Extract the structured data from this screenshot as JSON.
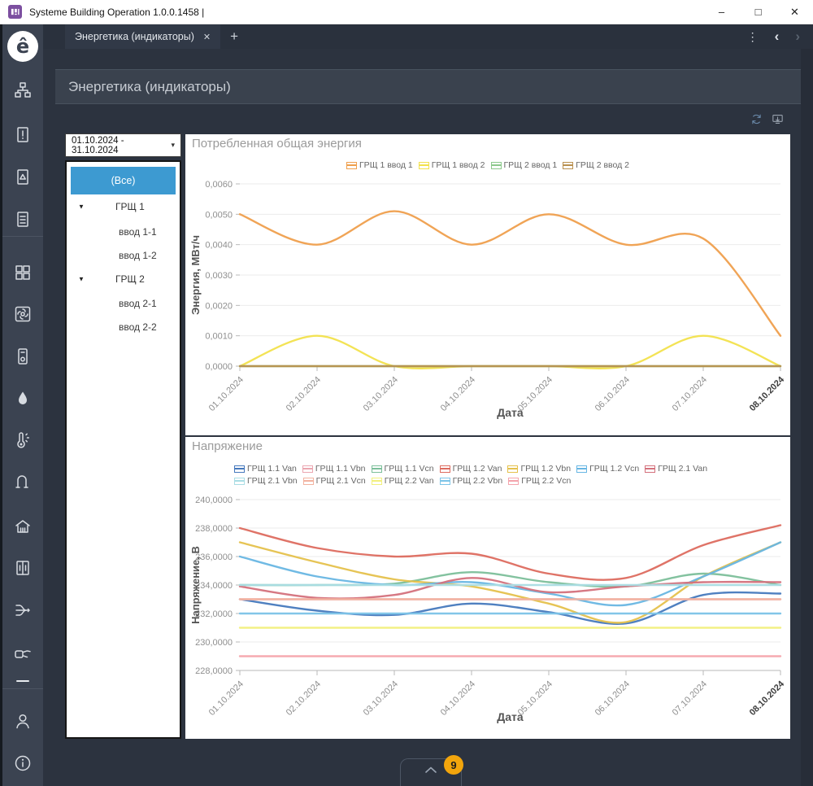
{
  "window": {
    "title": "Systeme Building Operation 1.0.0.1458 |",
    "controls": {
      "minimize": "–",
      "maximize": "□",
      "close": "✕"
    }
  },
  "tab_bar": {
    "tab_label": "Энергетика (индикаторы)",
    "tab_close": "✕",
    "new_tab": "+",
    "menu_dots": "⋮",
    "back": "‹",
    "forward": "›"
  },
  "sidebar": {
    "icons": [
      "logo",
      "hierarchy",
      "document-alert",
      "document-alarm",
      "document-list",
      "numbers-grid",
      "fan",
      "controller",
      "water-drop",
      "thermometer",
      "pipe",
      "building",
      "elevator",
      "flow-branch",
      "hand-control",
      "user",
      "info"
    ]
  },
  "header": {
    "title": "Энергетика (индикаторы)",
    "actions": [
      "sync-icon",
      "export-icon"
    ]
  },
  "filters": {
    "date_range": "01.10.2024 - 31.10.2024",
    "caret": "▾",
    "tree": {
      "all_label": "(Все)",
      "expander": "▼",
      "groups": [
        {
          "label": "ГРЩ 1",
          "children": [
            "ввод 1-1",
            "ввод 1-2"
          ]
        },
        {
          "label": "ГРЩ 2",
          "children": [
            "ввод 2-1",
            "ввод 2-2"
          ]
        }
      ]
    }
  },
  "chart_data": [
    {
      "type": "line",
      "title": "Потребленная общая энергия",
      "xlabel": "Дата",
      "ylabel": "Энергия, МВт/ч",
      "legend_position": "top",
      "grid": true,
      "x": [
        "01.10.2024",
        "02.10.2024",
        "03.10.2024",
        "04.10.2024",
        "05.10.2024",
        "06.10.2024",
        "07.10.2024",
        "08.10.2024"
      ],
      "ylim": [
        0,
        0.006
      ],
      "yticks": [
        "0,0000",
        "0,0010",
        "0,0020",
        "0,0030",
        "0,0040",
        "0,0050",
        "0,0060"
      ],
      "series": [
        {
          "name": "ГРЩ 1 ввод 1",
          "color": "#ef9f4d",
          "values": [
            0.005,
            0.004,
            0.0051,
            0.004,
            0.005,
            0.004,
            0.0042,
            0.001
          ]
        },
        {
          "name": "ГРЩ 1 ввод 2",
          "color": "#f2e14c",
          "values": [
            0,
            0.001,
            0,
            0,
            0,
            0,
            0.001,
            0
          ]
        },
        {
          "name": "ГРЩ 2 ввод 1",
          "color": "#8cc98c",
          "values": [
            0,
            0,
            0,
            0,
            0,
            0,
            0,
            0
          ]
        },
        {
          "name": "ГРЩ 2 ввод 2",
          "color": "#b9904f",
          "values": [
            0,
            0,
            0,
            0,
            0,
            0,
            0,
            0
          ]
        }
      ]
    },
    {
      "type": "line",
      "title": "Напряжение",
      "xlabel": "Дата",
      "ylabel": "Напряжение, В",
      "legend_position": "top",
      "grid": true,
      "x": [
        "01.10.2024",
        "02.10.2024",
        "03.10.2024",
        "04.10.2024",
        "05.10.2024",
        "06.10.2024",
        "07.10.2024",
        "08.10.2024"
      ],
      "ylim": [
        228,
        240
      ],
      "yticks": [
        "228,0000",
        "230,0000",
        "232,0000",
        "234,0000",
        "236,0000",
        "238,0000",
        "240,0000"
      ],
      "series": [
        {
          "name": "ГРЩ 1.1 Van",
          "color": "#4679bd",
          "values": [
            233.0,
            232.2,
            231.9,
            232.7,
            232.1,
            231.3,
            233.3,
            233.4
          ]
        },
        {
          "name": "ГРЩ 1.1 Vbn",
          "color": "#eba6b0",
          "values": [
            233.0,
            233.0,
            233.0,
            233.0,
            233.0,
            233.0,
            233.0,
            233.0
          ]
        },
        {
          "name": "ГРЩ 1.1 Vcn",
          "color": "#7cbf9a",
          "values": [
            234.0,
            234.0,
            234.1,
            234.9,
            234.2,
            233.9,
            234.8,
            234.0
          ]
        },
        {
          "name": "ГРЩ 1.2 Van",
          "color": "#dd6b5f",
          "values": [
            238.0,
            236.6,
            236.0,
            236.2,
            234.8,
            234.5,
            236.8,
            238.2
          ]
        },
        {
          "name": "ГРЩ 1.2 Vbn",
          "color": "#e5c14c",
          "values": [
            237.0,
            235.6,
            234.4,
            233.9,
            232.7,
            231.4,
            234.6,
            237.0
          ]
        },
        {
          "name": "ГРЩ 1.2 Vcn",
          "color": "#68b6e3",
          "values": [
            236.0,
            234.6,
            234.0,
            234.2,
            233.4,
            232.6,
            234.6,
            237.0
          ]
        },
        {
          "name": "ГРЩ 2.1 Van",
          "color": "#d4717c",
          "values": [
            233.9,
            233.1,
            233.3,
            234.5,
            233.5,
            233.9,
            234.2,
            234.2
          ]
        },
        {
          "name": "ГРЩ 2.1 Vbn",
          "color": "#aadde4",
          "values": [
            234.0,
            234.0,
            234.0,
            234.0,
            234.0,
            234.0,
            234.0,
            234.0
          ]
        },
        {
          "name": "ГРЩ 2.1 Vcn",
          "color": "#f2b3a0",
          "values": [
            233.0,
            233.0,
            233.0,
            233.0,
            233.0,
            233.0,
            233.0,
            233.0
          ]
        },
        {
          "name": "ГРЩ 2.2 Van",
          "color": "#f2f07e",
          "values": [
            231.0,
            231.0,
            231.0,
            231.0,
            231.0,
            231.0,
            231.0,
            231.0
          ]
        },
        {
          "name": "ГРЩ 2.2 Vbn",
          "color": "#7cc4e8",
          "values": [
            232.0,
            232.0,
            232.0,
            232.0,
            232.0,
            232.0,
            232.0,
            232.0
          ]
        },
        {
          "name": "ГРЩ 2.2 Vcn",
          "color": "#f4a5ad",
          "values": [
            229.0,
            229.0,
            229.0,
            229.0,
            229.0,
            229.0,
            229.0,
            229.0
          ]
        }
      ]
    }
  ],
  "footer": {
    "badge_count": "9"
  }
}
